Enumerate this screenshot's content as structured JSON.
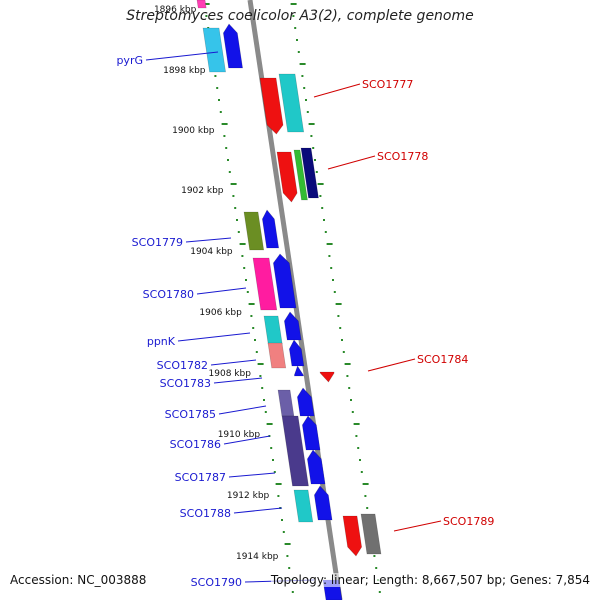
{
  "title": "Streptomyces coelicolor A3(2), complete genome",
  "footer": {
    "accession": "Accession: NC_003888",
    "stats": "Topology: linear; Length: 8,667,507 bp; Genes: 7,854"
  },
  "colors": {
    "backbone": "#8a8a8a",
    "tick": "#2a8a2a",
    "left_label": "#1a1ad0",
    "right_label": "#d00000"
  },
  "kbp_labels": [
    "1896 kbp",
    "1898 kbp",
    "1900 kbp",
    "1902 kbp",
    "1904 kbp",
    "1906 kbp",
    "1908 kbp",
    "1910 kbp",
    "1912 kbp",
    "1914 kbp"
  ],
  "left_labels": [
    "pyrG",
    "SCO1779",
    "SCO1780",
    "ppnK",
    "SCO1782",
    "SCO1783",
    "SCO1785",
    "SCO1786",
    "SCO1787",
    "SCO1788",
    "SCO1790"
  ],
  "right_labels": [
    "SCO1777",
    "SCO1778",
    "SCO1784",
    "SCO1789"
  ]
}
